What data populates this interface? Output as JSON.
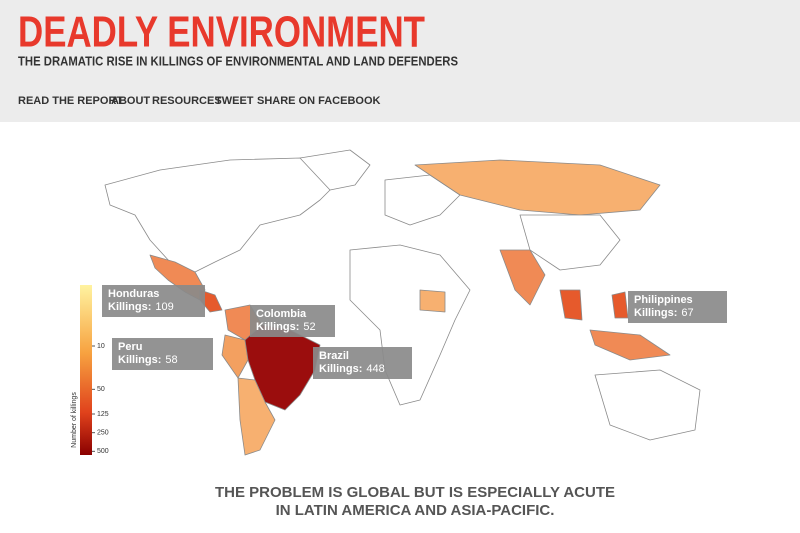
{
  "header": {
    "title": "DEADLY ENVIRONMENT",
    "subtitle": "THE DRAMATIC RISE IN KILLINGS OF ENVIRONMENTAL AND LAND DEFENDERS"
  },
  "nav": [
    "READ THE REPORT",
    "ABOUT",
    "RESOURCES",
    "TWEET",
    "SHARE ON FACEBOOK"
  ],
  "map": {
    "killings_label": "Killings:",
    "callouts": [
      {
        "country": "Honduras",
        "killings": 109
      },
      {
        "country": "Peru",
        "killings": 58
      },
      {
        "country": "Colombia",
        "killings": 52
      },
      {
        "country": "Brazil",
        "killings": 448
      },
      {
        "country": "Philippines",
        "killings": 67
      }
    ],
    "legend": {
      "title": "Number of killings",
      "ticks": [
        10,
        50,
        125,
        250,
        500
      ],
      "log_scale": true
    }
  },
  "footer": [
    "THE PROBLEM IS GLOBAL BUT IS ESPECIALLY ACUTE",
    "IN LATIN AMERICA AND ASIA-PACIFIC."
  ]
}
